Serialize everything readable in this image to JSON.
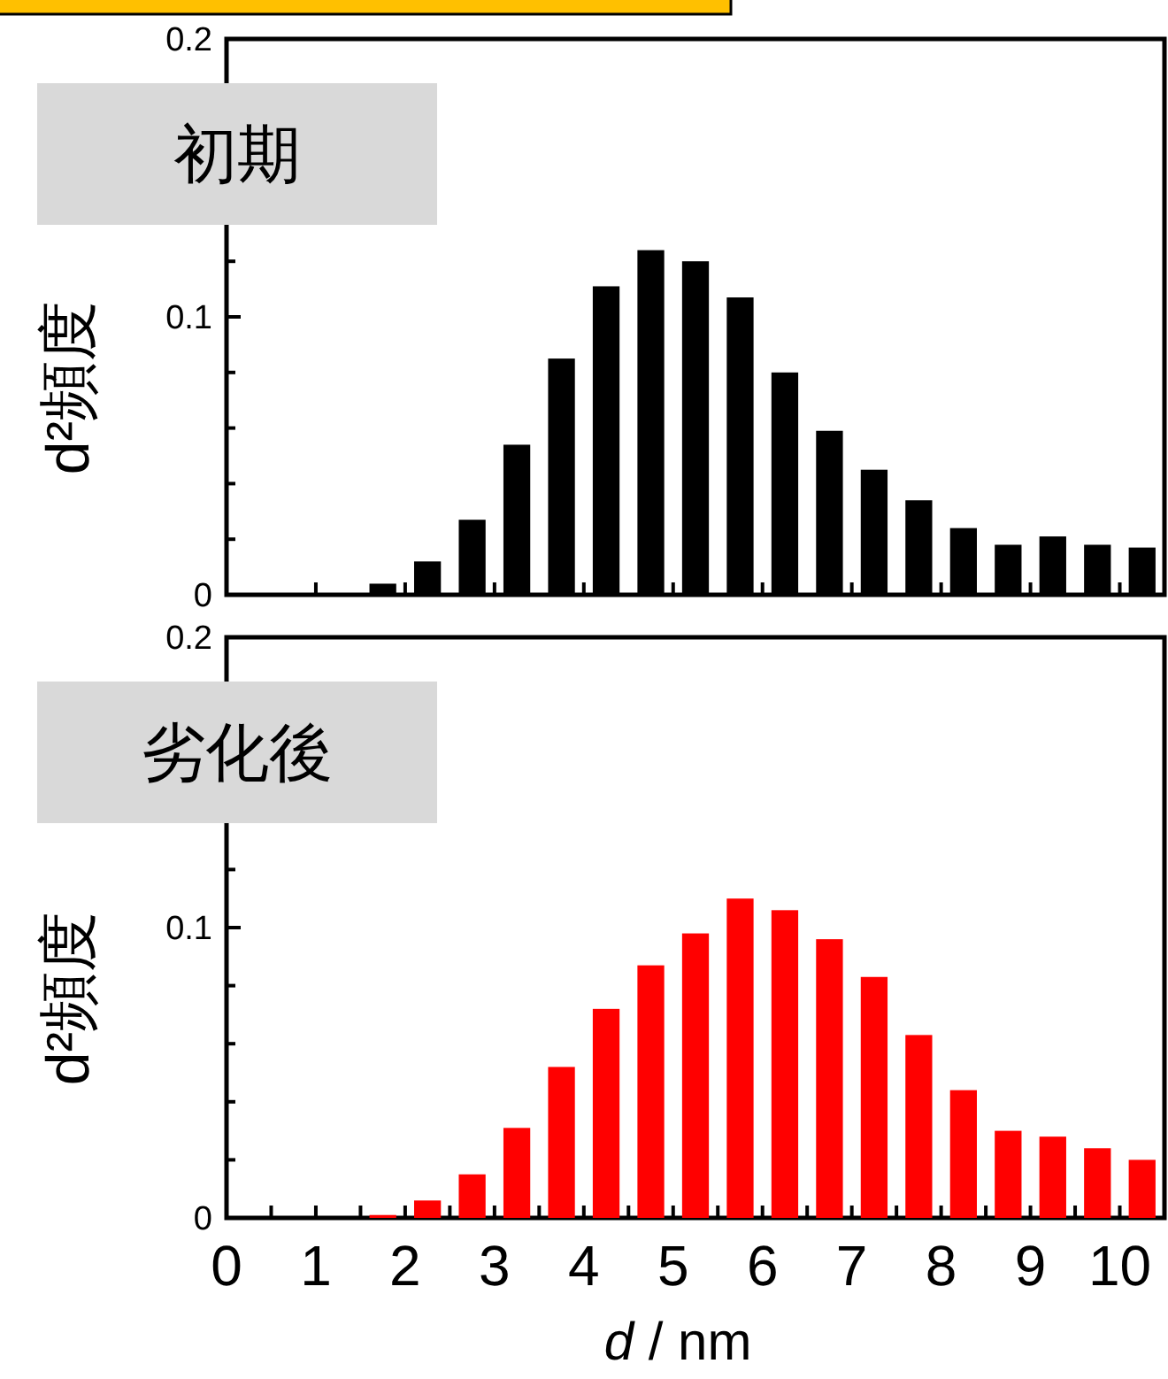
{
  "chart_data": [
    {
      "type": "histogram",
      "title": "初期",
      "ylabel": "d²頻度",
      "color": "#000000",
      "bins": [
        1.5,
        2,
        2.5,
        3,
        3.5,
        4,
        4.5,
        5,
        5.5,
        6,
        6.5,
        7,
        7.5,
        8,
        8.5,
        9,
        9.5,
        10,
        10.5
      ],
      "values": [
        0.004,
        0.012,
        0.027,
        0.054,
        0.085,
        0.111,
        0.124,
        0.12,
        0.107,
        0.08,
        0.059,
        0.045,
        0.034,
        0.024,
        0.018,
        0.021,
        0.018,
        0.017
      ],
      "xlim": [
        0,
        10.5
      ],
      "ylim": [
        0,
        0.2
      ],
      "xticks": [
        {
          "value": 1,
          "label": null
        },
        {
          "value": 2,
          "label": null
        },
        {
          "value": 3,
          "label": null
        },
        {
          "value": 4,
          "label": null
        },
        {
          "value": 5,
          "label": null
        },
        {
          "value": 6,
          "label": null
        },
        {
          "value": 7,
          "label": null
        },
        {
          "value": 8,
          "label": null
        },
        {
          "value": 9,
          "label": null
        },
        {
          "value": 10,
          "label": null
        }
      ],
      "yticks": [
        0,
        {
          "value": 0.02,
          "label": null
        },
        {
          "value": 0.04,
          "label": null
        },
        {
          "value": 0.06,
          "label": null
        },
        {
          "value": 0.08,
          "label": null
        },
        0.1,
        {
          "value": 0.12,
          "label": null
        },
        {
          "value": 0.14,
          "label": null
        },
        {
          "value": 0.16,
          "label": null
        },
        {
          "value": 0.18,
          "label": null
        },
        0.2
      ],
      "tick_labels": "y"
    },
    {
      "type": "histogram",
      "title": "劣化後",
      "ylabel": "d²頻度",
      "xlabel": "d / nm",
      "color": "#ff0000",
      "bins": [
        1.5,
        2,
        2.5,
        3,
        3.5,
        4,
        4.5,
        5,
        5.5,
        6,
        6.5,
        7,
        7.5,
        8,
        8.5,
        9,
        9.5,
        10,
        10.5
      ],
      "values": [
        0.001,
        0.006,
        0.015,
        0.031,
        0.052,
        0.072,
        0.087,
        0.098,
        0.11,
        0.106,
        0.096,
        0.083,
        0.063,
        0.044,
        0.03,
        0.028,
        0.024,
        0.02
      ],
      "xlim": [
        0,
        10.5
      ],
      "ylim": [
        0,
        0.2
      ],
      "xticks": [
        0,
        {
          "value": 0.5,
          "label": null
        },
        1,
        {
          "value": 1.5,
          "label": null
        },
        2,
        {
          "value": 2.5,
          "label": null
        },
        3,
        {
          "value": 3.5,
          "label": null
        },
        4,
        {
          "value": 4.5,
          "label": null
        },
        5,
        {
          "value": 5.5,
          "label": null
        },
        6,
        {
          "value": 6.5,
          "label": null
        },
        7,
        {
          "value": 7.5,
          "label": null
        },
        8,
        {
          "value": 8.5,
          "label": null
        },
        9,
        {
          "value": 9.5,
          "label": null
        },
        10
      ],
      "yticks": [
        0,
        {
          "value": 0.02,
          "label": null
        },
        {
          "value": 0.04,
          "label": null
        },
        {
          "value": 0.06,
          "label": null
        },
        {
          "value": 0.08,
          "label": null
        },
        0.1,
        {
          "value": 0.12,
          "label": null
        },
        {
          "value": 0.14,
          "label": null
        },
        {
          "value": 0.16,
          "label": null
        },
        {
          "value": 0.18,
          "label": null
        },
        0.2
      ]
    }
  ]
}
